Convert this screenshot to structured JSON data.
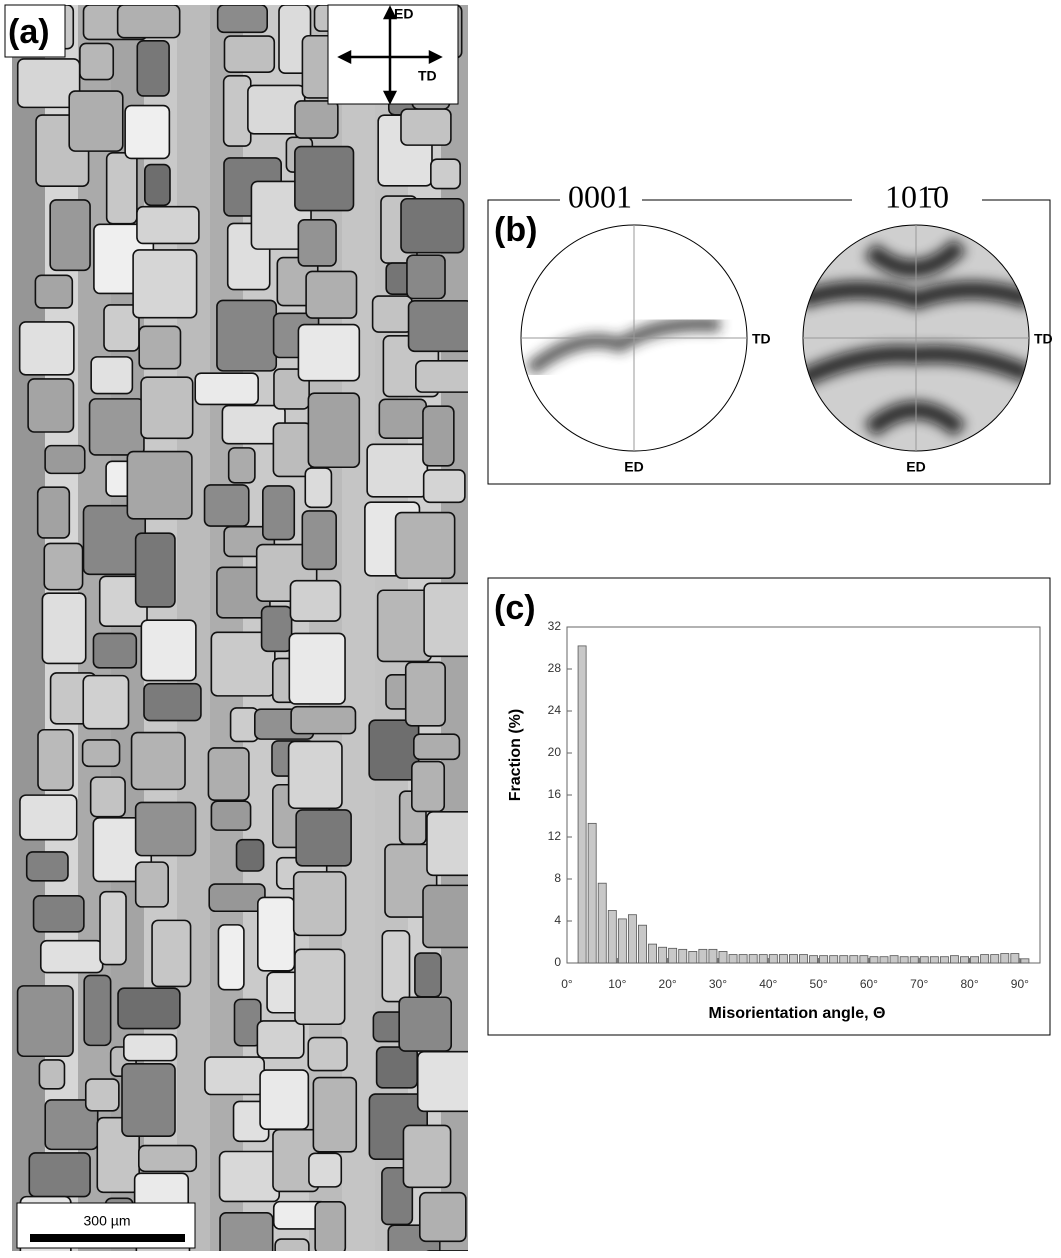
{
  "panel_a": {
    "label": "(a)",
    "arrows": {
      "vertical": "ED",
      "horizontal": "TD"
    },
    "scale_bar": "300 µm"
  },
  "panel_b": {
    "label": "(b)",
    "pole_figures": [
      {
        "title": "0001",
        "right": "TD",
        "bottom": "ED"
      },
      {
        "title": "101̄0",
        "right": "TD",
        "bottom": "ED"
      }
    ]
  },
  "panel_c": {
    "label": "(c)"
  },
  "chart_data": {
    "type": "histogram",
    "xlabel": "Misorientation angle, Θ",
    "ylabel": "Fraction (%)",
    "color": "#c8c8c8",
    "bins": [
      2,
      4,
      6,
      8,
      10,
      12,
      14,
      16,
      18,
      20,
      22,
      24,
      26,
      28,
      30,
      32,
      34,
      36,
      38,
      40,
      42,
      44,
      46,
      48,
      50,
      52,
      54,
      56,
      58,
      60,
      62,
      64,
      66,
      68,
      70,
      72,
      74,
      76,
      78,
      80,
      82,
      84,
      86,
      88,
      90,
      92
    ],
    "values": [
      30.2,
      13.3,
      7.6,
      5.0,
      4.2,
      4.6,
      3.6,
      1.8,
      1.5,
      1.4,
      1.3,
      1.1,
      1.3,
      1.3,
      1.1,
      0.8,
      0.8,
      0.8,
      0.8,
      0.8,
      0.8,
      0.8,
      0.8,
      0.7,
      0.7,
      0.7,
      0.7,
      0.7,
      0.7,
      0.6,
      0.6,
      0.7,
      0.6,
      0.6,
      0.6,
      0.6,
      0.6,
      0.7,
      0.6,
      0.6,
      0.8,
      0.8,
      0.9,
      0.9,
      0.4
    ],
    "xlim": [
      0,
      94
    ],
    "ylim": [
      0,
      32
    ],
    "xticks": [
      {
        "value": 0,
        "label": "0°"
      },
      {
        "value": 10,
        "label": "10°"
      },
      {
        "value": 20,
        "label": "20°"
      },
      {
        "value": 30,
        "label": "30°"
      },
      {
        "value": 40,
        "label": "40°"
      },
      {
        "value": 50,
        "label": "50°"
      },
      {
        "value": 60,
        "label": "60°"
      },
      {
        "value": 70,
        "label": "70°"
      },
      {
        "value": 80,
        "label": "80°"
      },
      {
        "value": 90,
        "label": "90°"
      }
    ],
    "yticks": [
      0,
      4,
      8,
      12,
      16,
      20,
      24,
      28,
      32
    ]
  }
}
